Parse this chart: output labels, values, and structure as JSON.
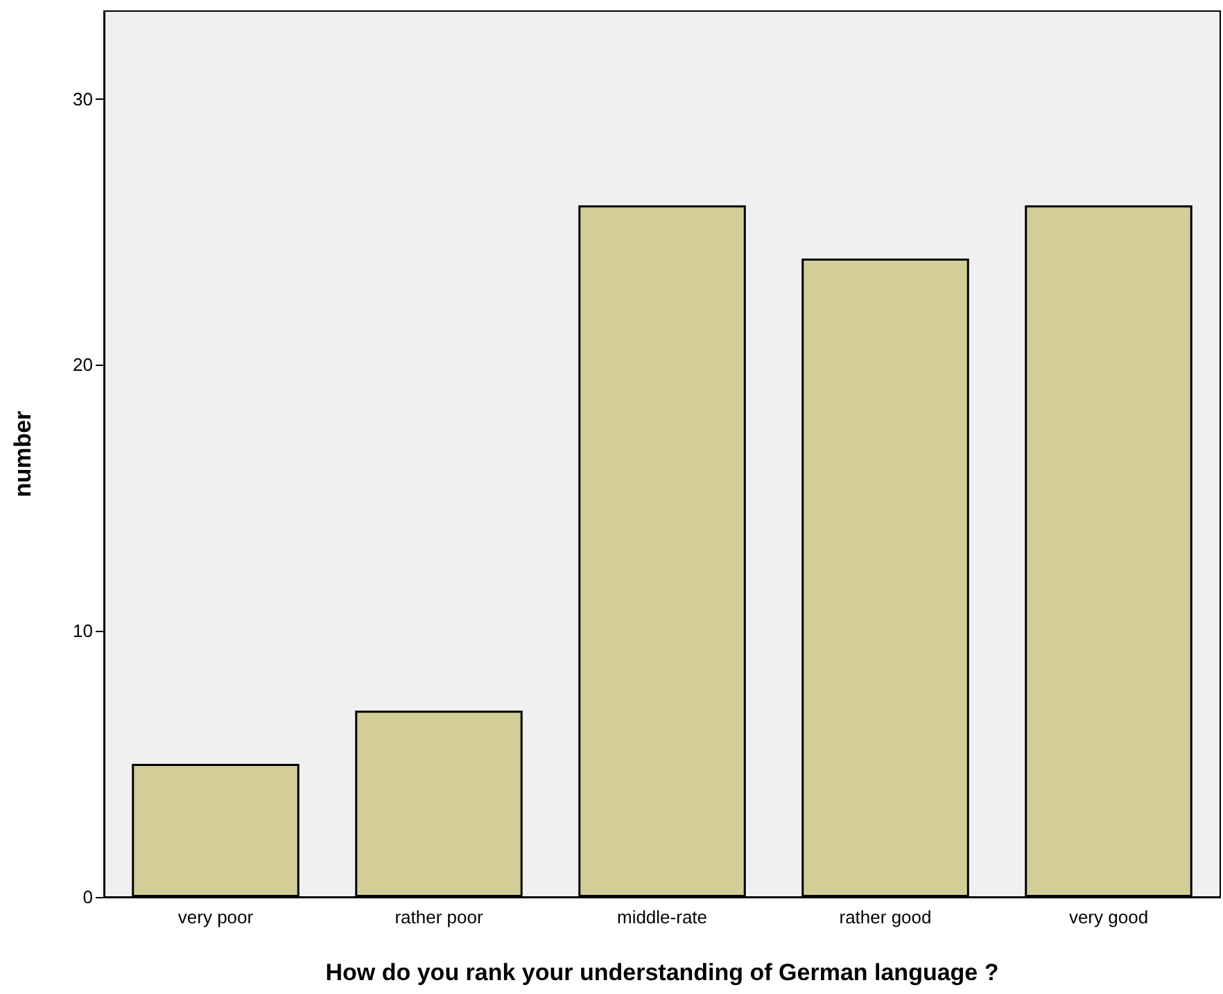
{
  "chart_data": {
    "type": "bar",
    "xlabel": "How do you rank your understanding of German language ?",
    "ylabel": "number",
    "categories": [
      "very poor",
      "rather poor",
      "middle-rate",
      "rather good",
      "very good"
    ],
    "values": [
      5,
      7,
      26,
      24,
      26
    ],
    "color": "#d3ce98",
    "ylim": [
      0,
      33.3
    ],
    "yticks": [
      0,
      10,
      20,
      30
    ],
    "grid": false
  }
}
